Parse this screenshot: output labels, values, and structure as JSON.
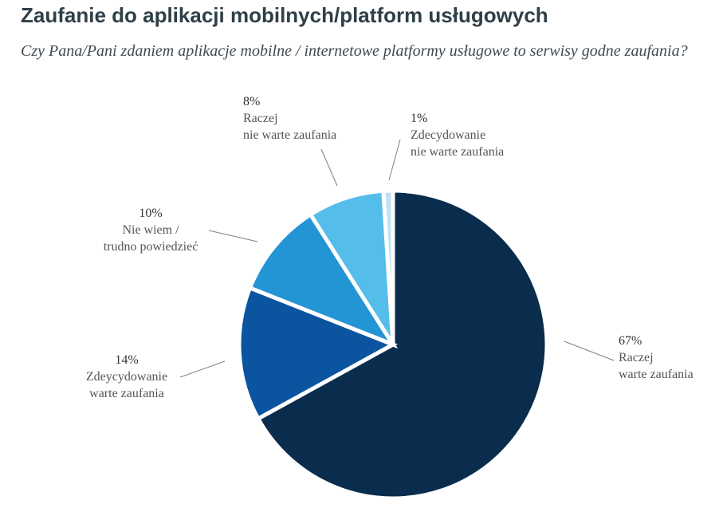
{
  "header": {
    "title": "Zaufanie do aplikacji mobilnych/platform usługowych",
    "subtitle": "Czy Pana/Pani zdaniem aplikacje mobilne / internetowe platformy usługowe to serwisy godne zaufania?"
  },
  "chart_data": {
    "type": "pie",
    "title": "Zaufanie do aplikacji mobilnych/platform usługowych",
    "subtitle": "Czy Pana/Pani zdaniem aplikacje mobilne / internetowe platformy usługowe to serwisy godne zaufania?",
    "legend": "none",
    "slices": [
      {
        "key": "raczej-warte",
        "label_lines": [
          "Raczej",
          "warte zaufania"
        ],
        "pct_label": "67%",
        "value": 67,
        "color": "#0a2d4e"
      },
      {
        "key": "zdecydowanie-warte",
        "label_lines": [
          "Zdeycydowanie",
          "warte zaufania"
        ],
        "pct_label": "14%",
        "value": 14,
        "color": "#0b54a0"
      },
      {
        "key": "nie-wiem",
        "label_lines": [
          "Nie wiem /",
          "trudno powiedzieć"
        ],
        "pct_label": "10%",
        "value": 10,
        "color": "#2394d4"
      },
      {
        "key": "raczej-nie-warte",
        "label_lines": [
          "Raczej",
          "nie warte zaufania"
        ],
        "pct_label": "8%",
        "value": 8,
        "color": "#55bdea"
      },
      {
        "key": "zdecydowanie-nie-warte",
        "label_lines": [
          "Zdecydowanie",
          "nie warte zaufania"
        ],
        "pct_label": "1%",
        "value": 1,
        "color": "#bfe3f3"
      }
    ]
  }
}
